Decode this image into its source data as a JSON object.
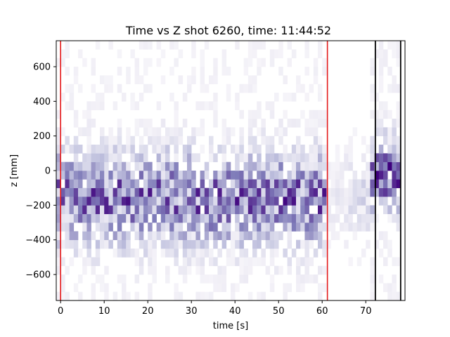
{
  "chart_data": {
    "type": "heatmap",
    "title": "Time vs Z shot 6260, time: 11:44:52",
    "xlabel": "time [s]",
    "ylabel": "z [mm]",
    "xlim": [
      -1,
      79
    ],
    "ylim": [
      -750,
      750
    ],
    "xticks": [
      0,
      10,
      20,
      30,
      40,
      50,
      60,
      70
    ],
    "yticks": [
      -600,
      -400,
      -200,
      0,
      200,
      400,
      600
    ],
    "ytick_labels": [
      "−600",
      "−400",
      "−200",
      "0",
      "200",
      "400",
      "600"
    ],
    "bin_width_x": 1,
    "bin_width_y": 50,
    "colormap": "Purples",
    "grid": false,
    "colors": {
      "red_line": "#e41a1c",
      "black_line": "#000000"
    },
    "vertical_lines": [
      {
        "x": 0,
        "color": "red"
      },
      {
        "x": 61.2,
        "color": "red"
      },
      {
        "x": 72.2,
        "color": "black"
      },
      {
        "x": 78,
        "color": "black"
      }
    ]
  }
}
